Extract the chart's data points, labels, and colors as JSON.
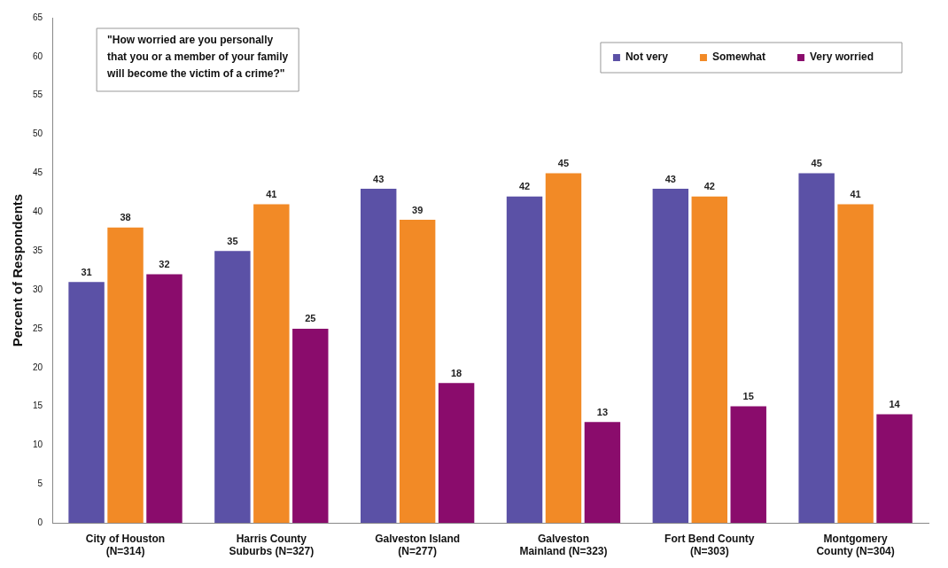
{
  "chart_data": {
    "type": "bar",
    "ylabel": "Percent of Respondents",
    "categories": [
      "City of Houston\n(N=314)",
      "Harris County\nSuburbs (N=327)",
      "Galveston Island\n(N=277)",
      "Galveston\nMainland (N=323)",
      "Fort Bend County\n(N=303)",
      "Montgomery\nCounty (N=304)"
    ],
    "series": [
      {
        "name": "Not very",
        "color": "#5b51a6",
        "values": [
          31,
          35,
          43,
          42,
          43,
          45
        ]
      },
      {
        "name": "Somewhat",
        "color": "#f28a26",
        "values": [
          38,
          41,
          39,
          45,
          42,
          41
        ]
      },
      {
        "name": "Very worried",
        "color": "#8a0c6c",
        "values": [
          32,
          25,
          18,
          13,
          15,
          14
        ]
      }
    ],
    "ylim": [
      0,
      65
    ],
    "yticks": [
      0,
      5,
      10,
      15,
      20,
      25,
      30,
      35,
      40,
      45,
      50,
      55,
      60,
      65
    ],
    "grid": false,
    "legend": "top right",
    "data_labels": true,
    "annotations": [
      "\"How worried are you personally\nthat you or a member of your family\nwill become the victim of a crime?\""
    ]
  }
}
